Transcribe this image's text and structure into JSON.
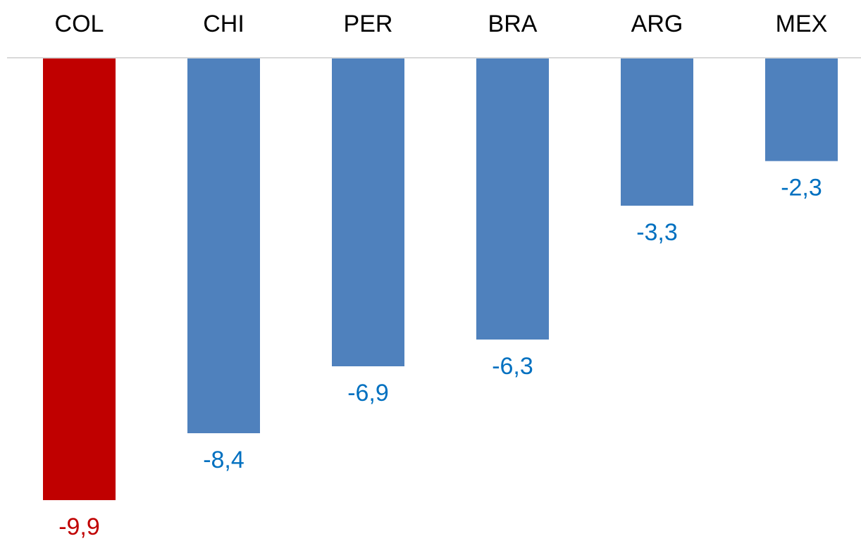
{
  "chart_data": {
    "type": "bar",
    "categories": [
      "COL",
      "CHI",
      "PER",
      "BRA",
      "ARG",
      "MEX"
    ],
    "values": [
      -9.9,
      -8.4,
      -6.9,
      -6.3,
      -3.3,
      -2.3
    ],
    "value_labels": [
      "-9,9",
      "-8,4",
      "-6,9",
      "-6,3",
      "-3,3",
      "-2,3"
    ],
    "colors": [
      "#c00000",
      "#4f81bd",
      "#4f81bd",
      "#4f81bd",
      "#4f81bd",
      "#4f81bd"
    ],
    "label_colors": [
      "#c00000",
      "#0070c0",
      "#0070c0",
      "#0070c0",
      "#0070c0",
      "#0070c0"
    ]
  }
}
